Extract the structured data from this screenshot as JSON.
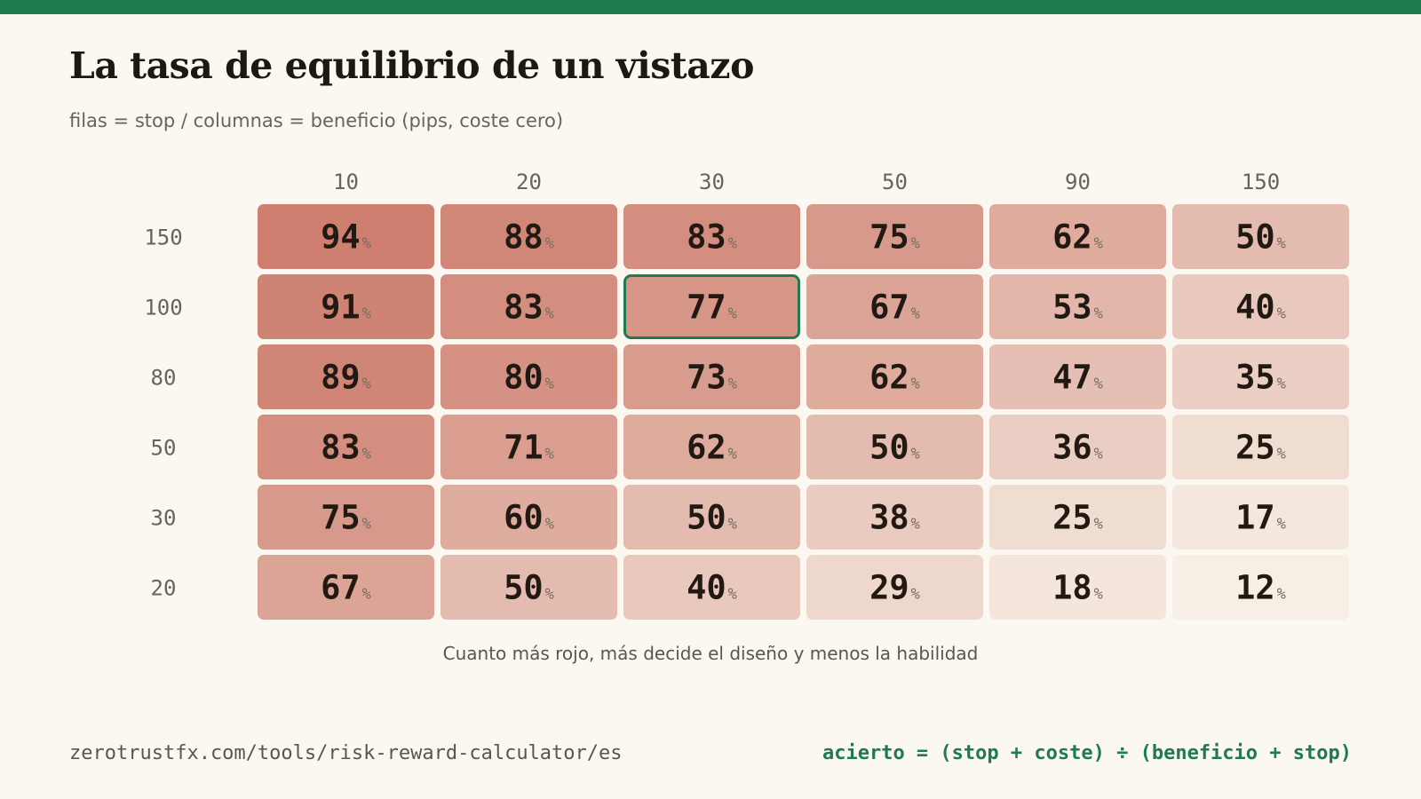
{
  "header": {
    "title": "La tasa de equilibrio de un vistazo",
    "subtitle": "filas = stop / columnas = beneficio (pips, coste cero)"
  },
  "colors": {
    "accent": "#1f7a4e",
    "background": "#fbf8f1",
    "heat_low": "#f8f1e8",
    "heat_high": "#cd7e6e"
  },
  "chart_data": {
    "type": "heatmap",
    "columns": [
      "10",
      "20",
      "30",
      "50",
      "90",
      "150"
    ],
    "rows": [
      "150",
      "100",
      "80",
      "50",
      "30",
      "20"
    ],
    "values": [
      [
        94,
        88,
        83,
        75,
        62,
        50
      ],
      [
        91,
        83,
        77,
        67,
        53,
        40
      ],
      [
        89,
        80,
        73,
        62,
        47,
        35
      ],
      [
        83,
        71,
        62,
        50,
        36,
        25
      ],
      [
        75,
        60,
        50,
        38,
        25,
        17
      ],
      [
        67,
        50,
        40,
        29,
        18,
        12
      ]
    ],
    "unit": "%",
    "highlight": {
      "row": 1,
      "col": 2
    }
  },
  "note": "Cuanto más rojo, más decide el diseño y menos la habilidad",
  "footer": {
    "url": "zerotrustfx.com/tools/risk-reward-calculator/es",
    "formula": "acierto = (stop + coste) ÷ (beneficio + stop)"
  }
}
